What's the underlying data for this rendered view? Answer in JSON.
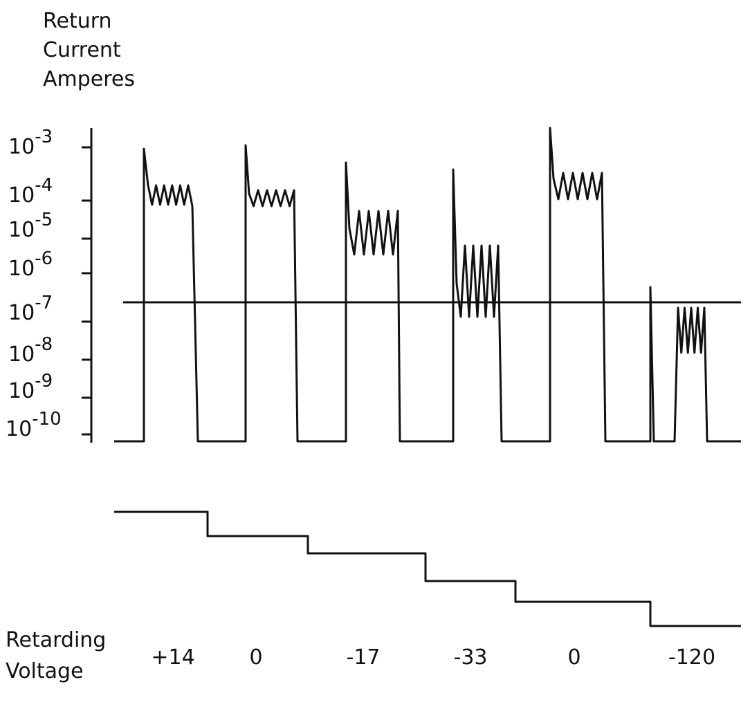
{
  "figure": {
    "y_label": [
      "Return",
      "Current",
      "Amperes"
    ],
    "y_ticks": [
      {
        "base": "10",
        "exp": "-3"
      },
      {
        "base": "10",
        "exp": "-4"
      },
      {
        "base": "10",
        "exp": "-5"
      },
      {
        "base": "10",
        "exp": "-6"
      },
      {
        "base": "10",
        "exp": "-7"
      },
      {
        "base": "10",
        "exp": "-8"
      },
      {
        "base": "10",
        "exp": "-9"
      },
      {
        "base": "10",
        "exp": "-10"
      }
    ],
    "x_label": [
      "Retarding",
      "Voltage"
    ],
    "voltages": [
      "+14",
      "0",
      "-17",
      "-33",
      "0",
      "-120"
    ]
  }
}
